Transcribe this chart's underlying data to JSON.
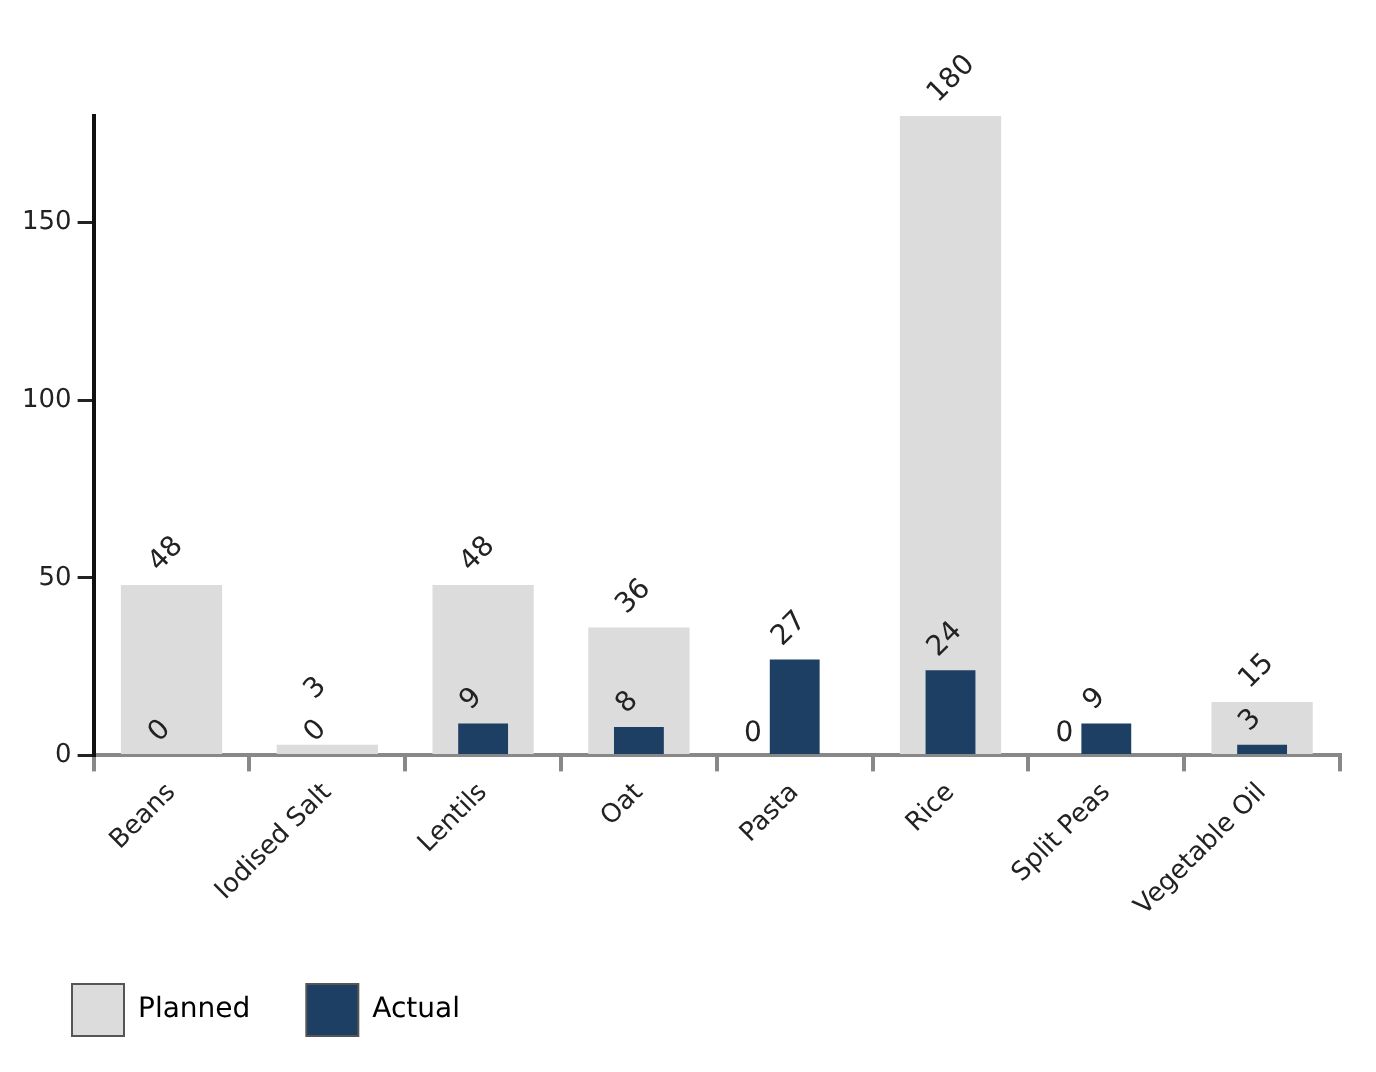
{
  "chart_data": {
    "type": "bar",
    "categories": [
      "Beans",
      "Iodised Salt",
      "Lentils",
      "Oat",
      "Pasta",
      "Rice",
      "Split Peas",
      "Vegetable Oil"
    ],
    "series": [
      {
        "name": "Planned",
        "color": "#dcdcdc",
        "values": [
          48,
          3,
          48,
          36,
          0,
          180,
          0,
          15
        ]
      },
      {
        "name": "Actual",
        "color": "#1c3f63",
        "values": [
          0,
          0,
          9,
          8,
          27,
          24,
          9,
          3
        ]
      }
    ],
    "ylim": [
      0,
      180
    ],
    "yticks": [
      0,
      50,
      100,
      150
    ],
    "grid": false,
    "legend": "bottom",
    "data_labels": true
  }
}
